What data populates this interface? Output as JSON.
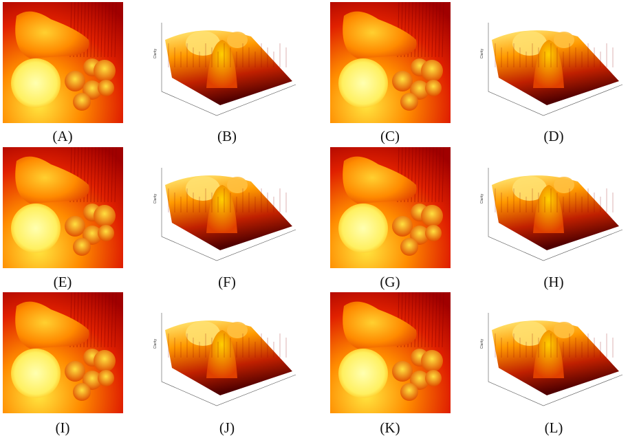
{
  "panels": [
    {
      "label": "(A)"
    },
    {
      "label": "(B)"
    },
    {
      "label": "(C)"
    },
    {
      "label": "(D)"
    },
    {
      "label": "(E)"
    },
    {
      "label": "(F)"
    },
    {
      "label": "(G)"
    },
    {
      "label": "(H)"
    },
    {
      "label": "(I)"
    },
    {
      "label": "(J)"
    },
    {
      "label": "(K)"
    },
    {
      "label": "(L)"
    }
  ],
  "surface_axis_label": "Clarity"
}
